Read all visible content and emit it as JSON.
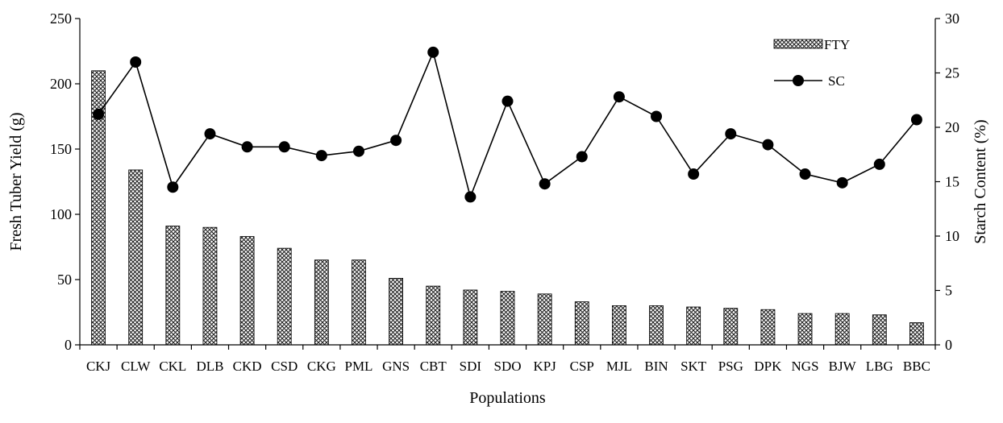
{
  "chart_data": {
    "type": "bar",
    "xlabel": "Populations",
    "ylabel": "Fresh Tuber Yield (g)",
    "y2label": "Starch Content (%)",
    "categories": [
      "CKJ",
      "CLW",
      "CKL",
      "DLB",
      "CKD",
      "CSD",
      "CKG",
      "PML",
      "GNS",
      "CBT",
      "SDI",
      "SDO",
      "KPJ",
      "CSP",
      "MJL",
      "BIN",
      "SKT",
      "PSG",
      "DPK",
      "NGS",
      "BJW",
      "LBG",
      "BBC"
    ],
    "ylim": [
      0,
      250
    ],
    "y2lim": [
      0,
      30
    ],
    "y_ticks": [
      "0",
      "50",
      "100",
      "150",
      "200",
      "250"
    ],
    "y2_ticks": [
      "0",
      "5",
      "10",
      "15",
      "20",
      "25",
      "30"
    ],
    "legend_position": "top-right",
    "series": [
      {
        "name": "FTY",
        "type": "bar",
        "axis": "left",
        "pattern": "crosshatch",
        "values": [
          210,
          134,
          91,
          90,
          83,
          74,
          65,
          65,
          51,
          45,
          42,
          41,
          39,
          33,
          30,
          30,
          29,
          28,
          27,
          24,
          24,
          23,
          17
        ]
      },
      {
        "name": "SC",
        "type": "line",
        "axis": "right",
        "marker": "circle",
        "values": [
          21.2,
          26.0,
          14.5,
          19.4,
          18.2,
          18.2,
          17.4,
          17.8,
          18.8,
          26.9,
          13.6,
          22.4,
          14.8,
          17.3,
          22.8,
          21.0,
          15.7,
          19.4,
          18.4,
          15.7,
          14.9,
          16.6,
          20.7
        ]
      }
    ]
  }
}
